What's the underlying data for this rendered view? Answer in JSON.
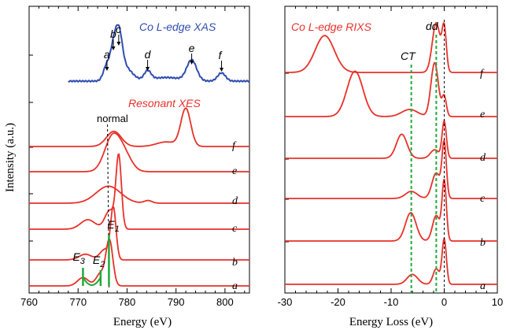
{
  "colors": {
    "xes": "#e8312a",
    "xas": "#2f4db0",
    "ct_line": "#1faa3a",
    "frame": "#000000"
  },
  "chart_data": [
    {
      "type": "line",
      "panel": "left",
      "xlabel": "Energy (eV)",
      "ylabel": "Intensity (a.u.)",
      "xlim": [
        760,
        805
      ],
      "xticks": [
        "760",
        "770",
        "780",
        "790",
        "800"
      ],
      "xas_title": "Co L-edge XAS",
      "xes_title": "Resonant XES",
      "normal_label": "normal",
      "normal_x": 776,
      "xas_markers": [
        {
          "label": "a",
          "x": 775.9
        },
        {
          "label": "b",
          "x": 777.2
        },
        {
          "label": "c",
          "x": 778.3
        },
        {
          "label": "d",
          "x": 784.2
        },
        {
          "label": "e",
          "x": 793.2
        },
        {
          "label": "f",
          "x": 799.3
        }
      ],
      "peak_labels": [
        {
          "label": "E",
          "sub": "3",
          "x": 771
        },
        {
          "label": "E",
          "sub": "2",
          "x": 774.6
        },
        {
          "label": "E",
          "sub": "1",
          "x": 776.3
        }
      ],
      "series": [
        {
          "name": "a",
          "peaks": [
            [
              771,
              0.22,
              1.1
            ],
            [
              774.6,
              0.33,
              0.9
            ],
            [
              776.4,
              1.2,
              0.7
            ]
          ]
        },
        {
          "name": "b",
          "peaks": [
            [
              771.5,
              0.15,
              1.3
            ],
            [
              775.5,
              0.28,
              1.0
            ],
            [
              777.2,
              1.35,
              0.55
            ]
          ]
        },
        {
          "name": "c",
          "peaks": [
            [
              772,
              0.25,
              1.5
            ],
            [
              776.5,
              0.5,
              1.0
            ],
            [
              778.3,
              1.9,
              0.55
            ]
          ]
        },
        {
          "name": "d",
          "peaks": [
            [
              776.2,
              0.45,
              2.5
            ],
            [
              784.3,
              0.07,
              0.8
            ]
          ]
        },
        {
          "name": "e",
          "peaks": [
            [
              777,
              0.9,
              1.6
            ],
            [
              779.5,
              0.4,
              1.5
            ]
          ]
        },
        {
          "name": "f",
          "peaks": [
            [
              777.3,
              0.4,
              1.5
            ],
            [
              788,
              0.12,
              2.0
            ],
            [
              792,
              1.0,
              1.0
            ]
          ]
        }
      ]
    },
    {
      "type": "line",
      "panel": "right",
      "xlabel": "Energy Loss (eV)",
      "xlim": [
        -30,
        10
      ],
      "xticks": [
        "-30",
        "-20",
        "-10",
        "0",
        "10"
      ],
      "title": "Co L-edge RIXS",
      "ct_label": "CT",
      "dd_label": "dd",
      "ct_x": -6.2,
      "dd_x": -1.5,
      "zero_x": 0,
      "series": [
        {
          "name": "a",
          "peaks": [
            [
              -6,
              0.35,
              1.0
            ],
            [
              -1.5,
              0.55,
              0.6
            ],
            [
              0,
              1.6,
              0.4
            ]
          ]
        },
        {
          "name": "b",
          "peaks": [
            [
              -6.3,
              1.0,
              1.0
            ],
            [
              -1.5,
              0.9,
              0.7
            ],
            [
              0,
              2.1,
              0.4
            ]
          ]
        },
        {
          "name": "c",
          "peaks": [
            [
              -6.2,
              0.25,
              1.1
            ],
            [
              -1.5,
              0.9,
              0.8
            ],
            [
              0,
              1.9,
              0.4
            ]
          ]
        },
        {
          "name": "d",
          "peaks": [
            [
              -8,
              0.85,
              1.0
            ],
            [
              -1.8,
              0.3,
              0.8
            ],
            [
              0,
              1.3,
              0.4
            ]
          ]
        },
        {
          "name": "e",
          "peaks": [
            [
              -16.8,
              1.6,
              1.5
            ],
            [
              -6.5,
              0.25,
              1.5
            ],
            [
              -1.8,
              1.9,
              0.7
            ],
            [
              0,
              0.7,
              0.4
            ]
          ]
        },
        {
          "name": "f",
          "peaks": [
            [
              -22.5,
              1.3,
              1.8
            ],
            [
              -1.5,
              1.75,
              0.75
            ],
            [
              0,
              1.5,
              0.4
            ]
          ]
        }
      ]
    }
  ]
}
